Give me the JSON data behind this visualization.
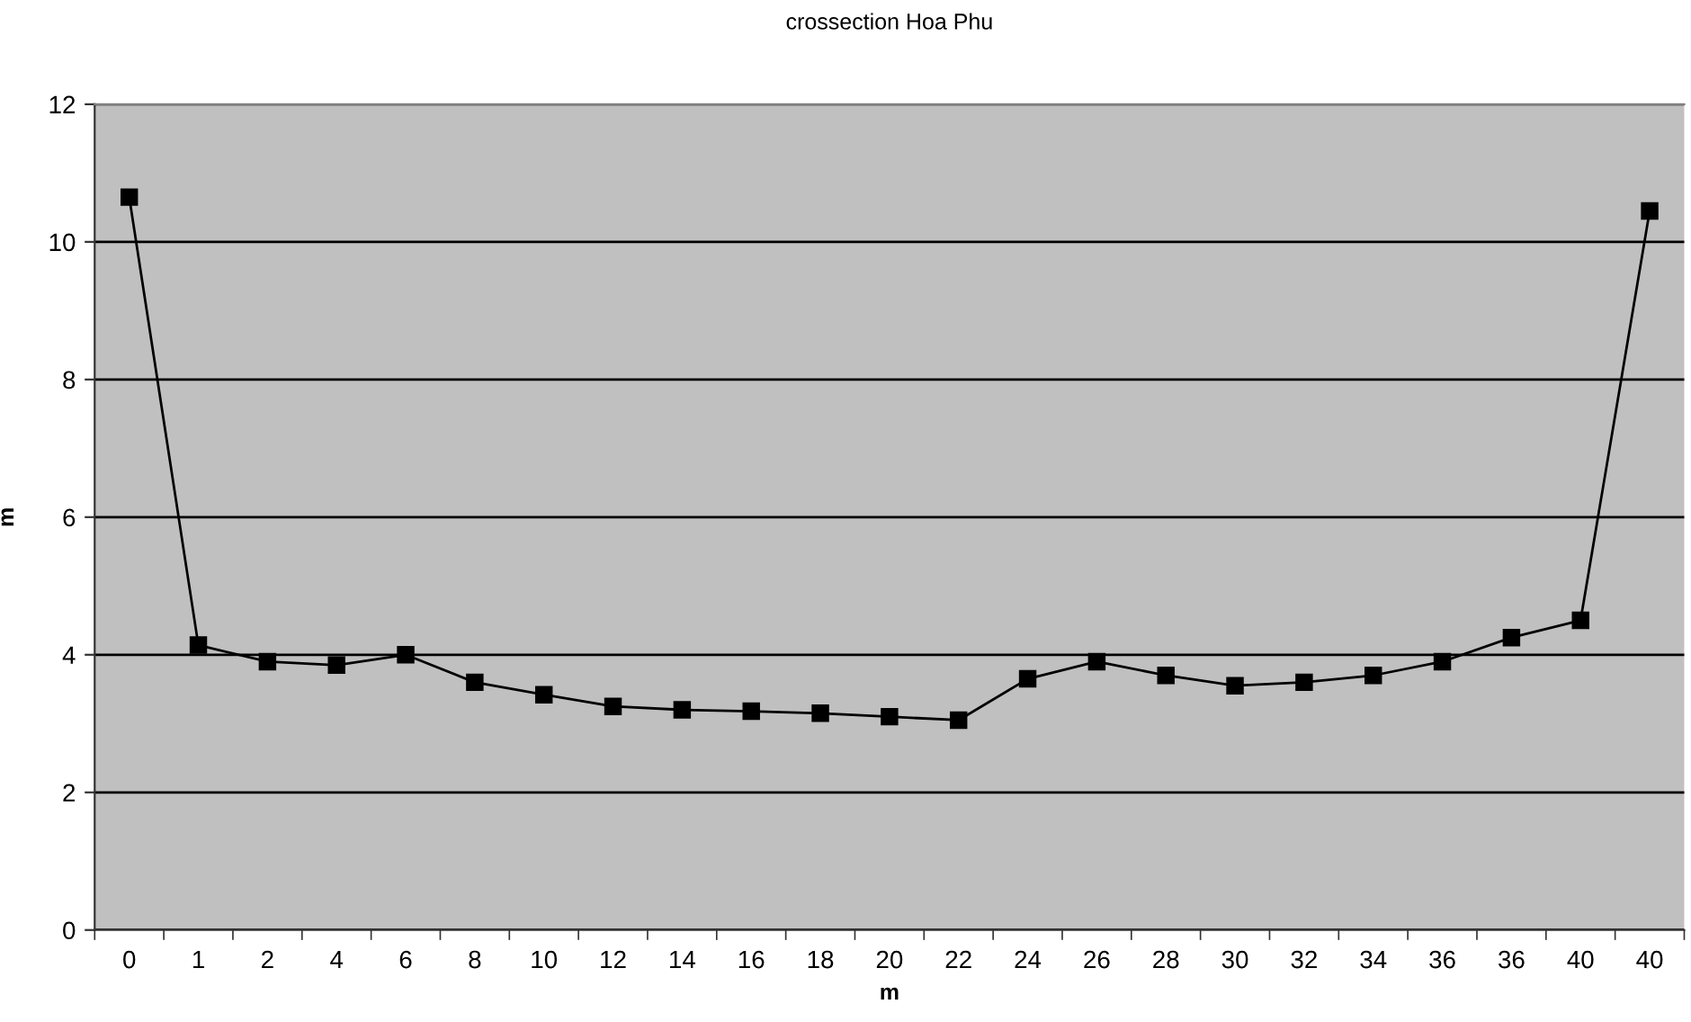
{
  "chart_data": {
    "type": "line",
    "title": "crossection Hoa Phu",
    "xlabel": "m",
    "ylabel": "m",
    "categories": [
      "0",
      "1",
      "2",
      "4",
      "6",
      "8",
      "10",
      "12",
      "14",
      "16",
      "18",
      "20",
      "22",
      "24",
      "26",
      "28",
      "30",
      "32",
      "34",
      "36",
      "36",
      "40",
      "40"
    ],
    "series": [
      {
        "color": "#000000",
        "values": [
          10.65,
          4.14,
          3.9,
          3.85,
          4.0,
          3.6,
          3.42,
          3.25,
          3.2,
          3.18,
          3.15,
          3.1,
          3.05,
          3.65,
          3.9,
          3.7,
          3.55,
          3.6,
          3.7,
          3.9,
          4.25,
          4.5,
          10.45
        ]
      }
    ],
    "ylim": [
      0,
      12
    ],
    "yticks": [
      0,
      2,
      4,
      6,
      8,
      10,
      12
    ],
    "grid": "y",
    "marker": "square",
    "line_style": "solid",
    "legend": false
  }
}
